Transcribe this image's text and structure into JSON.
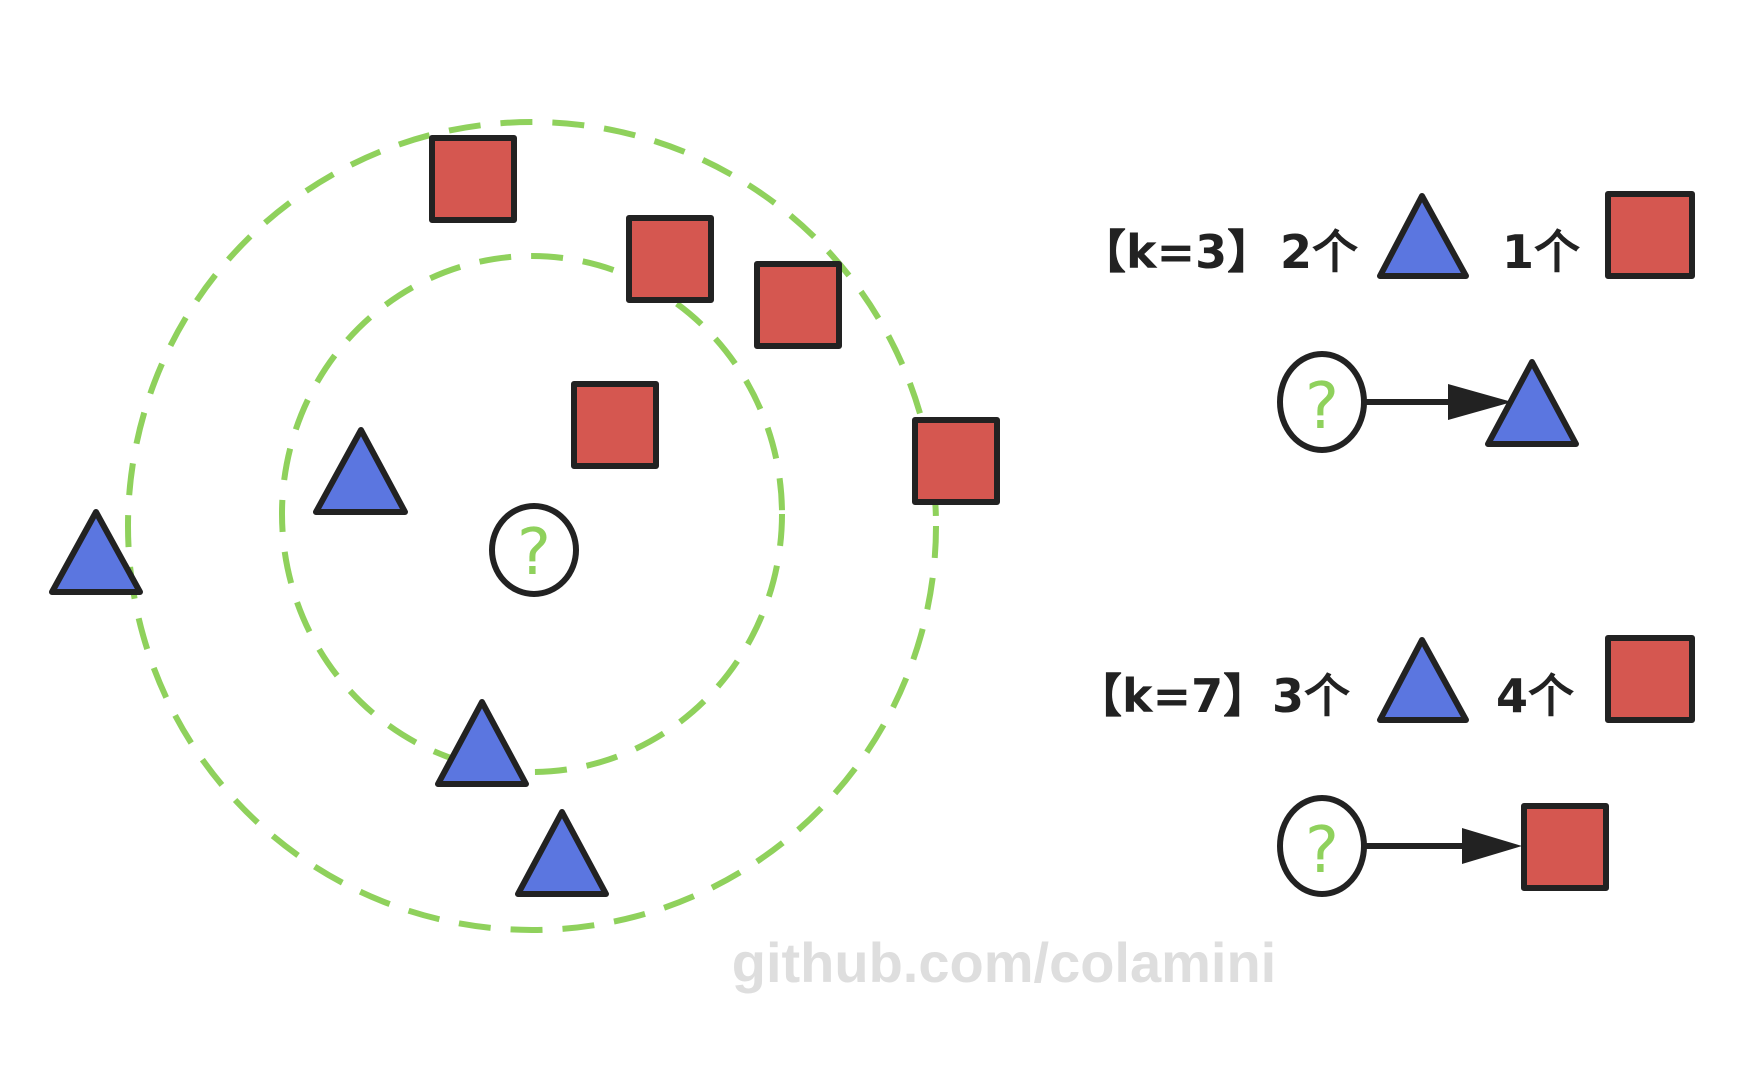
{
  "colors": {
    "circle_stroke": "#8fd15c",
    "triangle_fill": "#5b76e0",
    "square_fill": "#d55750",
    "outline": "#222222",
    "question_mark": "#8fd15c",
    "watermark": "#dedede"
  },
  "query_symbol": "?",
  "legend": [
    {
      "k_label": "【k=3】",
      "triangle_count": "2个",
      "square_count": "1个",
      "result": "triangle"
    },
    {
      "k_label": "【k=7】",
      "triangle_count": "3个",
      "square_count": "4个",
      "result": "square"
    }
  ],
  "watermark": "github.com/colamini"
}
